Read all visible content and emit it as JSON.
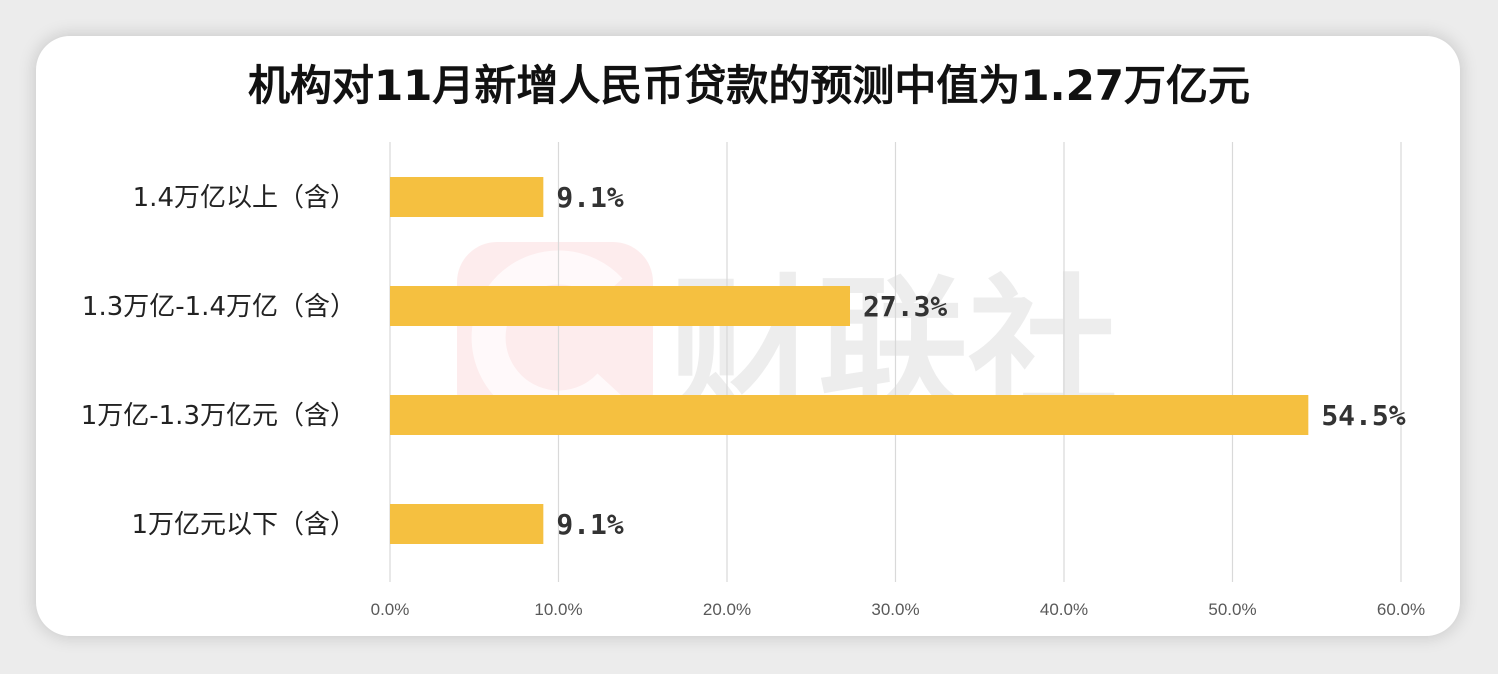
{
  "title": "机构对11月新增人民币贷款的预测中值为1.27万亿元",
  "watermark": {
    "text": "财联社",
    "logo_color": "#e8434f"
  },
  "colors": {
    "bar": "#f5c040",
    "grid": "#d9d9d9"
  },
  "chart_data": {
    "type": "bar",
    "orientation": "horizontal",
    "title": "机构对11月新增人民币贷款的预测中值为1.27万亿元",
    "categories": [
      "1.4万亿以上（含）",
      "1.3万亿-1.4万亿（含）",
      "1万亿-1.3万亿元（含）",
      "1万亿元以下（含）"
    ],
    "values": [
      9.1,
      27.3,
      54.5,
      9.1
    ],
    "value_labels": [
      "9.1%",
      "27.3%",
      "54.5%",
      "9.1%"
    ],
    "xlim": [
      0,
      60
    ],
    "x_ticks": [
      0,
      10,
      20,
      30,
      40,
      50,
      60
    ],
    "x_tick_labels": [
      "0.0%",
      "10.0%",
      "20.0%",
      "30.0%",
      "40.0%",
      "50.0%",
      "60.0%"
    ],
    "xlabel": "",
    "ylabel": "",
    "grid": "vertical",
    "legend": "none"
  }
}
